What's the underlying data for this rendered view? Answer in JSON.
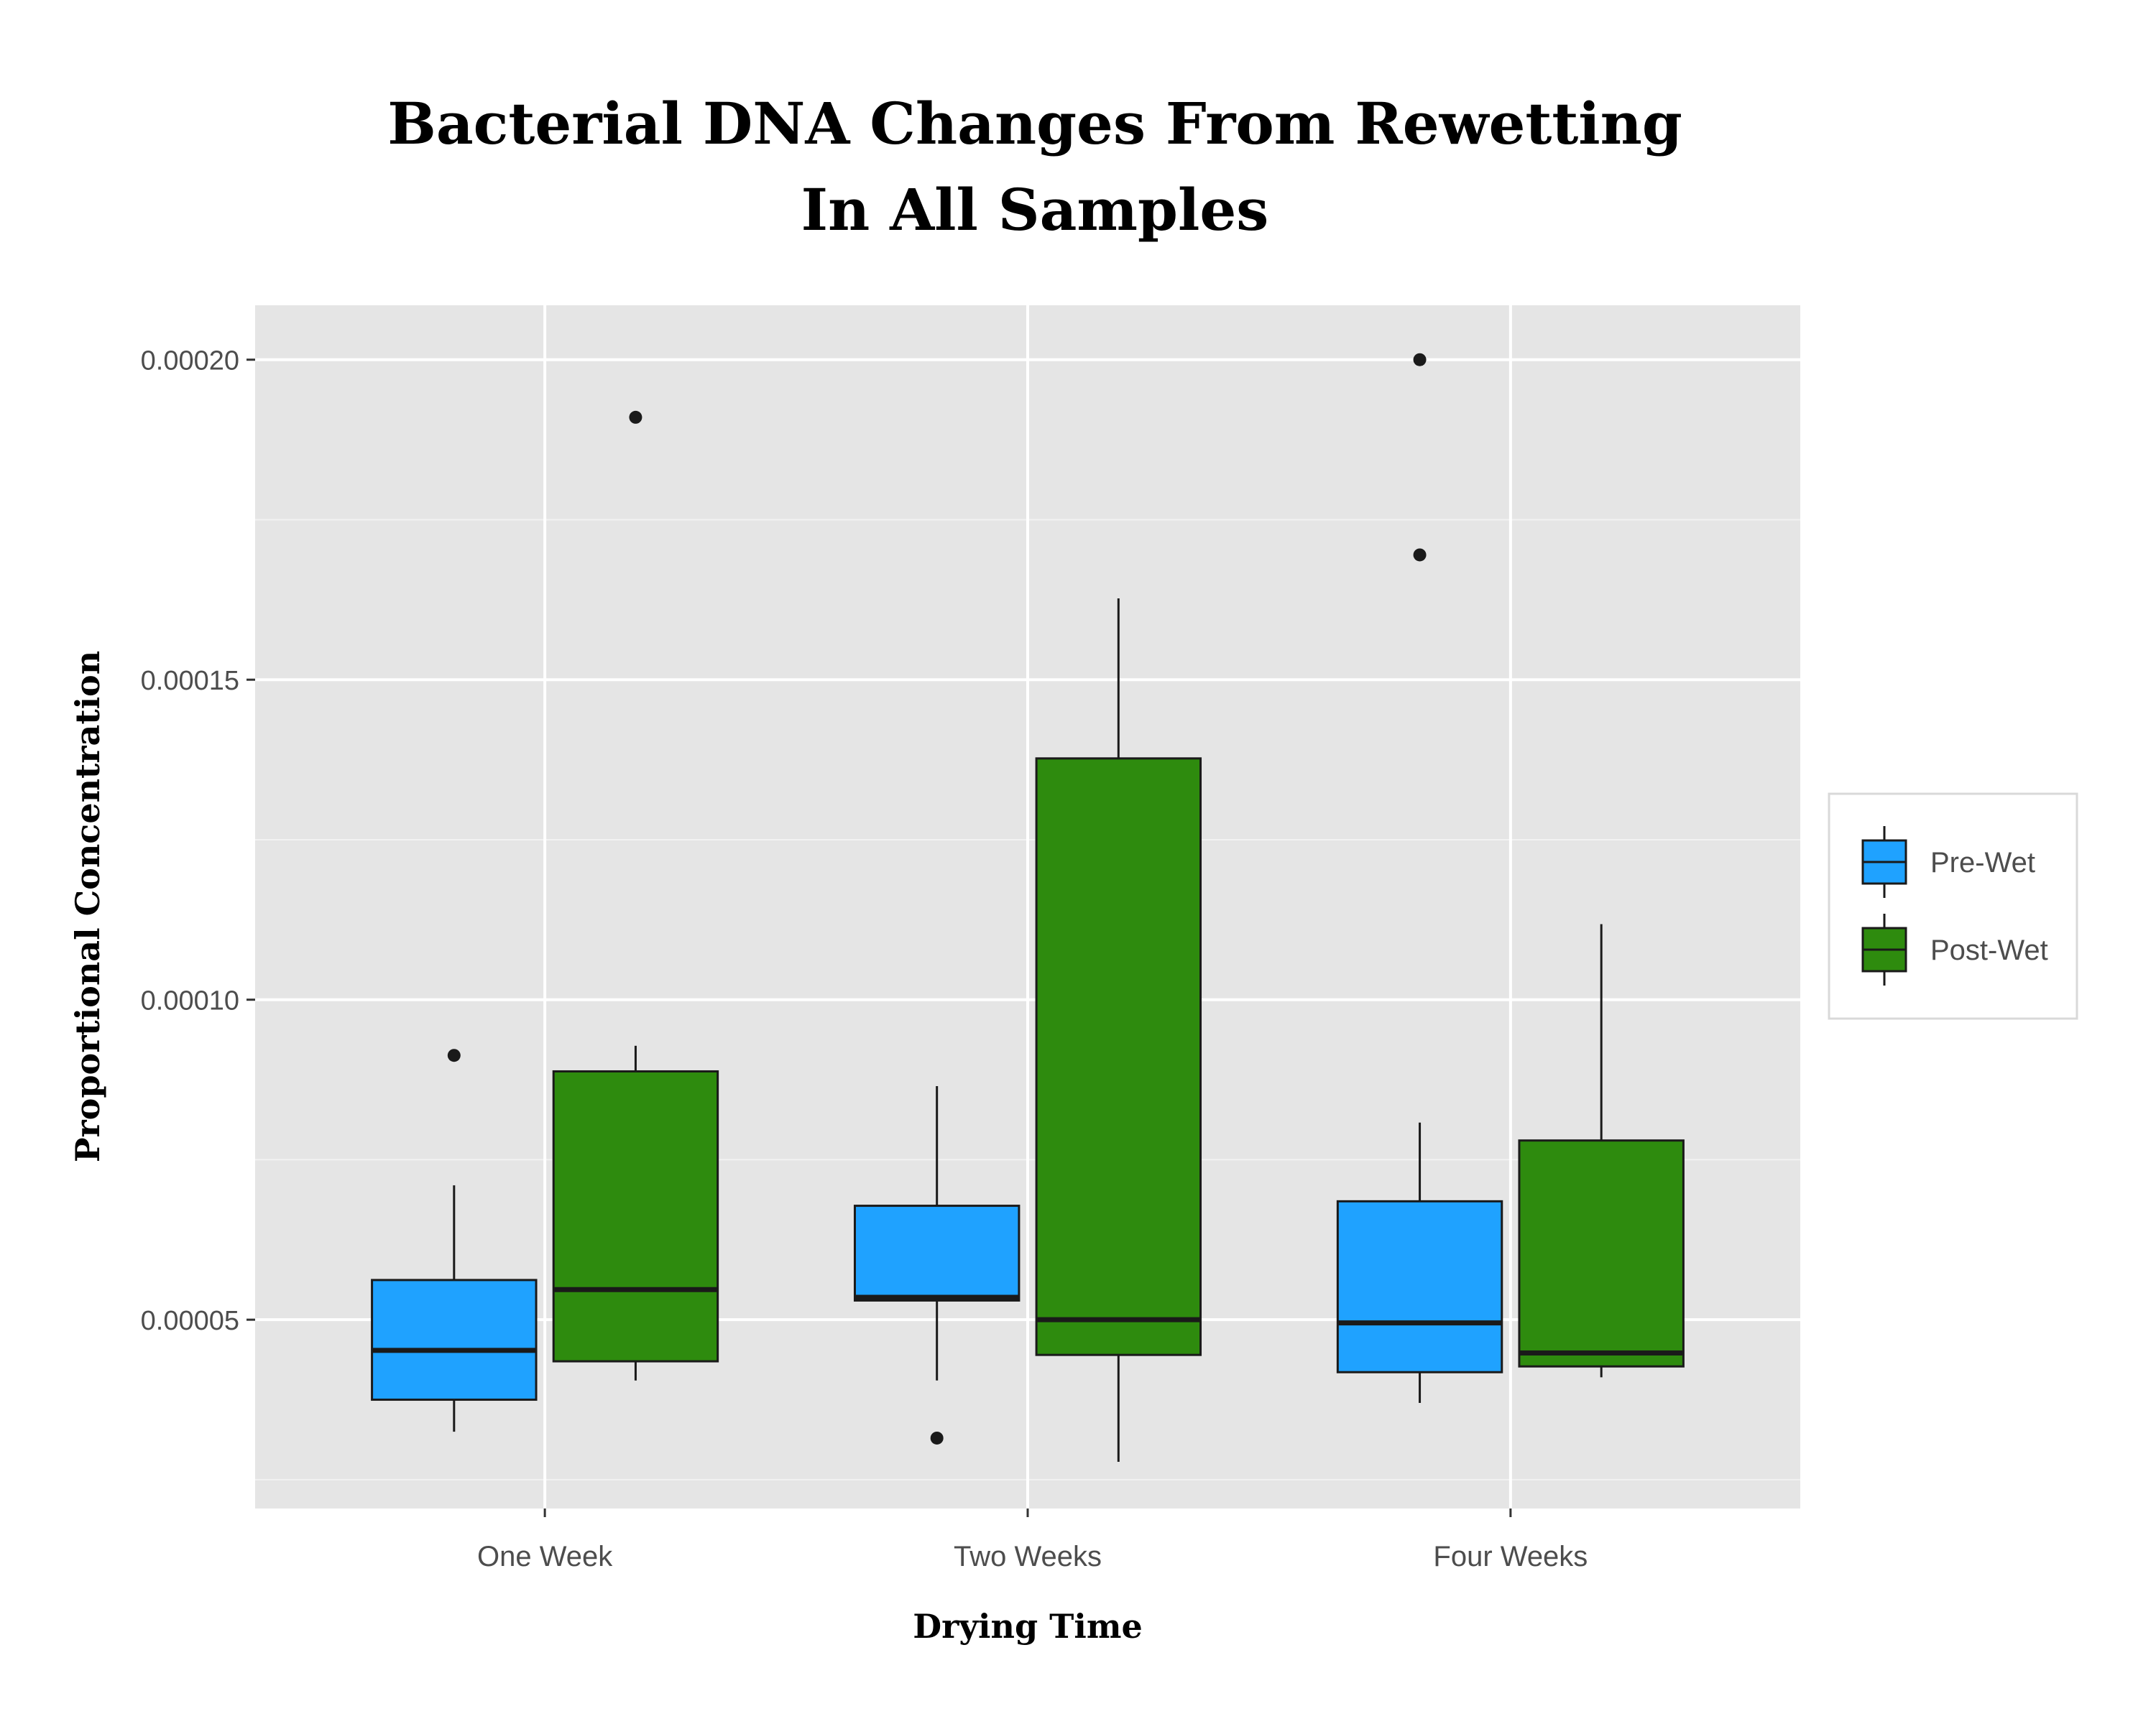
{
  "chart_data": {
    "type": "boxplot",
    "title_lines": [
      "Bacterial DNA Changes From Rewetting",
      "In All Samples"
    ],
    "xlabel": "Drying Time",
    "ylabel": "Proportional Concentration",
    "categories": [
      "One Week",
      "Two Weeks",
      "Four Weeks"
    ],
    "y_ticks": [
      5e-05,
      0.0001,
      0.00015,
      0.0002
    ],
    "y_tick_labels": [
      "0.00005",
      "0.00010",
      "0.00015",
      "0.00020"
    ],
    "ylim": [
      2.05e-05,
      0.0002085
    ],
    "grid": true,
    "legend_position": "right",
    "series": [
      {
        "name": "Pre-Wet",
        "color": "#1fa2ff",
        "boxes": [
          {
            "category": "One Week",
            "whisker_low": 3.25e-05,
            "q1": 3.75e-05,
            "median": 4.52e-05,
            "q3": 5.62e-05,
            "whisker_high": 7.1e-05,
            "outliers": [
              9.13e-05
            ]
          },
          {
            "category": "Two Weeks",
            "whisker_low": 4.05e-05,
            "q1": 5.3e-05,
            "median": 5.35e-05,
            "q3": 6.78e-05,
            "whisker_high": 8.65e-05,
            "outliers": [
              3.15e-05
            ]
          },
          {
            "category": "Four Weeks",
            "whisker_low": 3.7e-05,
            "q1": 4.18e-05,
            "median": 4.95e-05,
            "q3": 6.85e-05,
            "whisker_high": 8.08e-05,
            "outliers": [
              0.0002,
              0.0001695
            ]
          }
        ]
      },
      {
        "name": "Post-Wet",
        "color": "#2e8b0e",
        "boxes": [
          {
            "category": "One Week",
            "whisker_low": 4.05e-05,
            "q1": 4.35e-05,
            "median": 5.47e-05,
            "q3": 8.88e-05,
            "whisker_high": 9.28e-05,
            "outliers": [
              0.000191
            ]
          },
          {
            "category": "Two Weeks",
            "whisker_low": 2.78e-05,
            "q1": 4.45e-05,
            "median": 5e-05,
            "q3": 0.0001377,
            "whisker_high": 0.0001627,
            "outliers": []
          },
          {
            "category": "Four Weeks",
            "whisker_low": 4.1e-05,
            "q1": 4.27e-05,
            "median": 4.48e-05,
            "q3": 7.8e-05,
            "whisker_high": 0.0001118,
            "outliers": []
          }
        ]
      }
    ]
  }
}
